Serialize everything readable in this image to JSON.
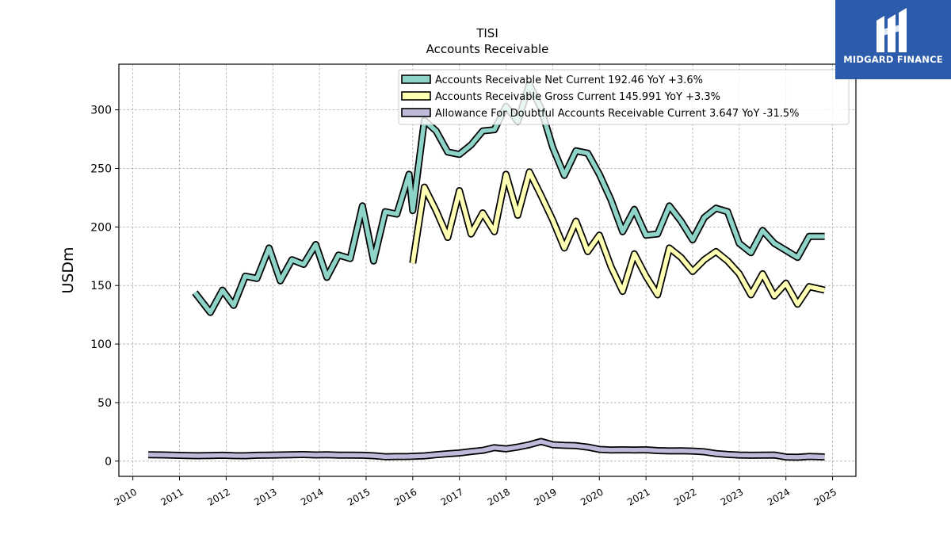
{
  "chart_data": {
    "type": "line",
    "title": "TISI",
    "subtitle": "Accounts Receivable",
    "ylabel": "USDm",
    "xlabel": "",
    "xlim": [
      2009.7,
      2025.5
    ],
    "ylim": [
      -13,
      339
    ],
    "x_ticks": [
      2010,
      2011,
      2012,
      2013,
      2014,
      2015,
      2016,
      2017,
      2018,
      2019,
      2020,
      2021,
      2022,
      2023,
      2024,
      2025
    ],
    "y_ticks": [
      0,
      50,
      100,
      150,
      200,
      250,
      300
    ],
    "grid": true,
    "legend_position": "top-right",
    "series": [
      {
        "name": "Accounts Receivable Net Current  192.46 YoY +3.6%",
        "color": "#8dd3c7",
        "x": [
          2011.33,
          2011.66,
          2011.92,
          2012.16,
          2012.41,
          2012.66,
          2012.92,
          2013.16,
          2013.41,
          2013.66,
          2013.92,
          2014.16,
          2014.41,
          2014.66,
          2014.92,
          2015.16,
          2015.41,
          2015.66,
          2015.92,
          2016.0,
          2016.25,
          2016.5,
          2016.75,
          2017.0,
          2017.25,
          2017.5,
          2017.75,
          2018.0,
          2018.25,
          2018.5,
          2018.75,
          2019.0,
          2019.25,
          2019.5,
          2019.75,
          2020.0,
          2020.25,
          2020.5,
          2020.75,
          2021.0,
          2021.25,
          2021.5,
          2021.75,
          2022.0,
          2022.25,
          2022.5,
          2022.75,
          2023.0,
          2023.25,
          2023.5,
          2023.75,
          2024.0,
          2024.25,
          2024.5,
          2024.83
        ],
        "values": [
          144,
          127,
          146,
          133,
          158,
          156,
          182,
          154,
          172,
          168,
          185,
          157,
          176,
          173,
          218,
          171,
          213,
          211,
          245,
          214,
          291,
          282,
          264,
          262,
          270,
          282,
          283,
          303,
          290,
          322,
          301,
          268,
          244,
          265,
          263,
          245,
          223,
          196,
          215,
          193,
          194,
          218,
          205,
          189,
          208,
          216,
          213,
          186,
          178,
          197,
          186,
          180,
          174,
          192,
          192
        ]
      },
      {
        "name": "Accounts Receivable Gross Current  145.991 YoY +3.3%",
        "color": "#ffffb3",
        "x": [
          2016.0,
          2016.25,
          2016.5,
          2016.75,
          2017.0,
          2017.25,
          2017.5,
          2017.75,
          2018.0,
          2018.25,
          2018.5,
          2018.75,
          2019.0,
          2019.25,
          2019.5,
          2019.75,
          2020.0,
          2020.25,
          2020.5,
          2020.75,
          2021.0,
          2021.25,
          2021.5,
          2021.75,
          2022.0,
          2022.25,
          2022.5,
          2022.75,
          2023.0,
          2023.25,
          2023.5,
          2023.75,
          2024.0,
          2024.25,
          2024.5,
          2024.83
        ],
        "values": [
          169,
          234,
          214,
          191,
          231,
          194,
          212,
          196,
          245,
          210,
          247,
          227,
          206,
          182,
          205,
          179,
          193,
          166,
          145,
          177,
          158,
          142,
          182,
          174,
          162,
          172,
          179,
          171,
          160,
          142,
          160,
          141,
          152,
          134,
          149,
          146
        ]
      },
      {
        "name": "Allowance For Doubtful Accounts Receivable Current  3.647 YoY -31.5%",
        "color": "#bebada",
        "x": [
          2010.33,
          2010.66,
          2010.92,
          2011.16,
          2011.41,
          2011.66,
          2011.92,
          2012.16,
          2012.41,
          2012.66,
          2012.92,
          2013.16,
          2013.41,
          2013.66,
          2013.92,
          2014.16,
          2014.41,
          2014.66,
          2014.92,
          2015.16,
          2015.41,
          2015.66,
          2015.92,
          2016.25,
          2016.5,
          2016.75,
          2017.0,
          2017.25,
          2017.5,
          2017.75,
          2018.0,
          2018.25,
          2018.5,
          2018.75,
          2019.0,
          2019.25,
          2019.5,
          2019.75,
          2020.0,
          2020.25,
          2020.5,
          2020.75,
          2021.0,
          2021.25,
          2021.5,
          2021.75,
          2022.0,
          2022.25,
          2022.5,
          2022.75,
          2023.0,
          2023.25,
          2023.5,
          2023.75,
          2024.0,
          2024.25,
          2024.5,
          2024.83
        ],
        "values": [
          5.5,
          5.3,
          5.0,
          4.8,
          4.6,
          4.8,
          5.0,
          4.7,
          4.6,
          5.0,
          5.1,
          5.3,
          5.4,
          5.6,
          5.3,
          5.4,
          5.1,
          5.1,
          5.0,
          4.6,
          3.8,
          3.9,
          4.0,
          4.5,
          5.5,
          6.3,
          7.0,
          8.2,
          9.2,
          11.5,
          10.5,
          12.0,
          14.0,
          16.8,
          14.0,
          13.5,
          13.2,
          12.0,
          10.0,
          9.5,
          9.7,
          9.5,
          9.7,
          9.0,
          8.7,
          8.8,
          8.6,
          8.0,
          6.5,
          5.7,
          5.2,
          5.0,
          5.1,
          5.2,
          3.5,
          3.3,
          4.0,
          3.6
        ]
      }
    ]
  },
  "logo": {
    "text": "MIDGARD FINANCE",
    "background": "#2c5bab"
  }
}
